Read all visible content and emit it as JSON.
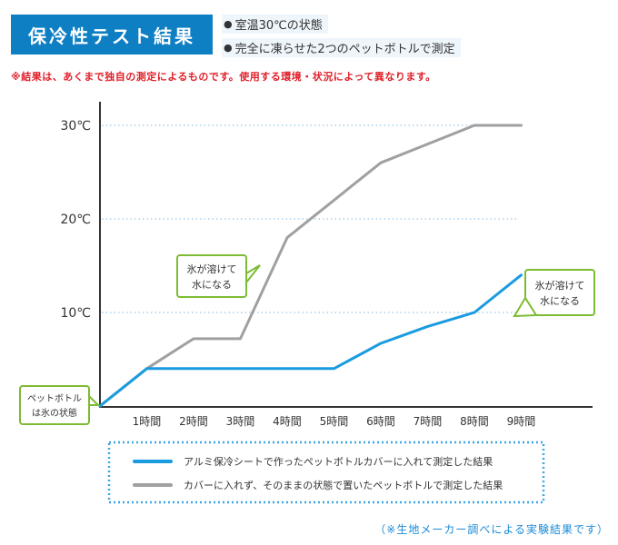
{
  "header": {
    "title": "保冷性テスト結果",
    "conditions": [
      "室温30℃の状態",
      "完全に凍らせた2つのペットボトルで測定"
    ],
    "note": "※結果は、あくまで独自の測定によるものです。使用する環境・状況によって異なります。"
  },
  "chart_data": {
    "type": "line",
    "x": [
      "0",
      "1時間",
      "2時間",
      "3時間",
      "4時間",
      "5時間",
      "6時間",
      "7時間",
      "8時間",
      "9時間"
    ],
    "tick_labels": [
      "1時間",
      "2時間",
      "3時間",
      "4時間",
      "5時間",
      "6時間",
      "7時間",
      "8時間",
      "9時間"
    ],
    "y_tick_labels": [
      "10℃",
      "20℃",
      "30℃"
    ],
    "y_ticks": [
      10,
      20,
      30
    ],
    "ylim": [
      0,
      31
    ],
    "grid": "horizontal dotted",
    "series": [
      {
        "name": "アルミ保冷シートで作ったペットボトルカバーに入れて測定した結果",
        "color": "#1a9be0",
        "values": [
          0,
          4,
          4,
          4,
          4,
          4,
          6.7,
          8.5,
          10,
          14
        ]
      },
      {
        "name": "カバーに入れず、そのままの状態で置いたペットボトルで測定した結果",
        "color": "#a0a0a0",
        "values": [
          0,
          4,
          7.2,
          7.2,
          18,
          22,
          26,
          28,
          30,
          30
        ]
      }
    ],
    "annotations": [
      {
        "id": "start",
        "lines": [
          "ペットボトル",
          "は氷の状態"
        ]
      },
      {
        "id": "gray-melt",
        "lines": [
          "氷が溶けて",
          "水になる"
        ]
      },
      {
        "id": "blue-melt",
        "lines": [
          "氷が溶けて",
          "水になる"
        ]
      }
    ],
    "legend_placement": "bottom-center"
  },
  "footnote": "（※生地メーカー調べによる実験結果です）",
  "colors": {
    "title_bg": "#0f7fc4",
    "note": "#e0202a",
    "blue_series": "#1a9be0",
    "gray_series": "#a0a0a0",
    "annotation_border": "#7dbb32",
    "legend_border": "#3ea8e6"
  }
}
